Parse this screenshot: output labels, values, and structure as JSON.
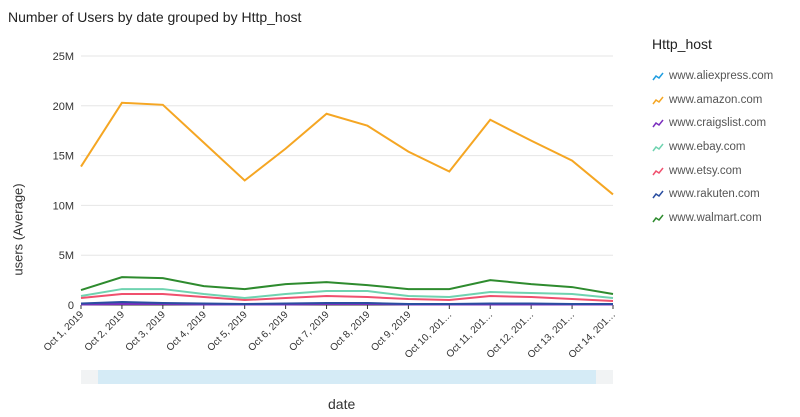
{
  "chart_data": {
    "type": "line",
    "title": "Number of Users by date grouped by Http_host",
    "xlabel": "date",
    "ylabel": "users (Average)",
    "ylim": [
      0,
      25000000
    ],
    "yticks": [
      "0",
      "5M",
      "10M",
      "15M",
      "20M",
      "25M"
    ],
    "grid": true,
    "legend_title": "Http_host",
    "legend_placement": "right",
    "categories": [
      "Oct 1, 2019",
      "Oct 2, 2019",
      "Oct 3, 2019",
      "Oct 4, 2019",
      "Oct 5, 2019",
      "Oct 6, 2019",
      "Oct 7, 2019",
      "Oct 8, 2019",
      "Oct 9, 2019",
      "Oct 10, 201…",
      "Oct 11, 201…",
      "Oct 12, 201…",
      "Oct 13, 201…",
      "Oct 14, 201…"
    ],
    "series": [
      {
        "name": "www.aliexpress.com",
        "color": "#1f9de0",
        "values": [
          0.1,
          0.1,
          0.1,
          0.1,
          0.1,
          0.1,
          0.1,
          0.1,
          0.1,
          0.1,
          0.1,
          0.1,
          0.1,
          0.1
        ]
      },
      {
        "name": "www.amazon.com",
        "color": "#f5a623",
        "values": [
          13.9,
          20.3,
          20.1,
          16.3,
          12.5,
          15.7,
          19.2,
          18.0,
          15.4,
          13.4,
          18.6,
          16.5,
          14.5,
          11.1
        ]
      },
      {
        "name": "www.craigslist.com",
        "color": "#7b2fbe",
        "values": [
          0.05,
          0.1,
          0.1,
          0.05,
          0.05,
          0.05,
          0.1,
          0.1,
          0.05,
          0.05,
          0.05,
          0.05,
          0.05,
          0.05
        ]
      },
      {
        "name": "www.ebay.com",
        "color": "#6fd3b0",
        "values": [
          0.9,
          1.6,
          1.6,
          1.1,
          0.7,
          1.1,
          1.4,
          1.4,
          0.9,
          0.8,
          1.3,
          1.2,
          1.1,
          0.7
        ]
      },
      {
        "name": "www.etsy.com",
        "color": "#f0506e",
        "values": [
          0.7,
          1.1,
          1.1,
          0.8,
          0.5,
          0.7,
          0.9,
          0.8,
          0.6,
          0.5,
          0.9,
          0.8,
          0.6,
          0.4
        ]
      },
      {
        "name": "www.rakuten.com",
        "color": "#2a4ea0",
        "values": [
          0.15,
          0.3,
          0.2,
          0.15,
          0.1,
          0.15,
          0.2,
          0.2,
          0.1,
          0.1,
          0.15,
          0.15,
          0.1,
          0.1
        ]
      },
      {
        "name": "www.walmart.com",
        "color": "#2e8b2e",
        "values": [
          1.5,
          2.8,
          2.7,
          1.9,
          1.6,
          2.1,
          2.3,
          2.0,
          1.6,
          1.6,
          2.5,
          2.1,
          1.8,
          1.1
        ]
      }
    ],
    "value_unit": "millions"
  }
}
